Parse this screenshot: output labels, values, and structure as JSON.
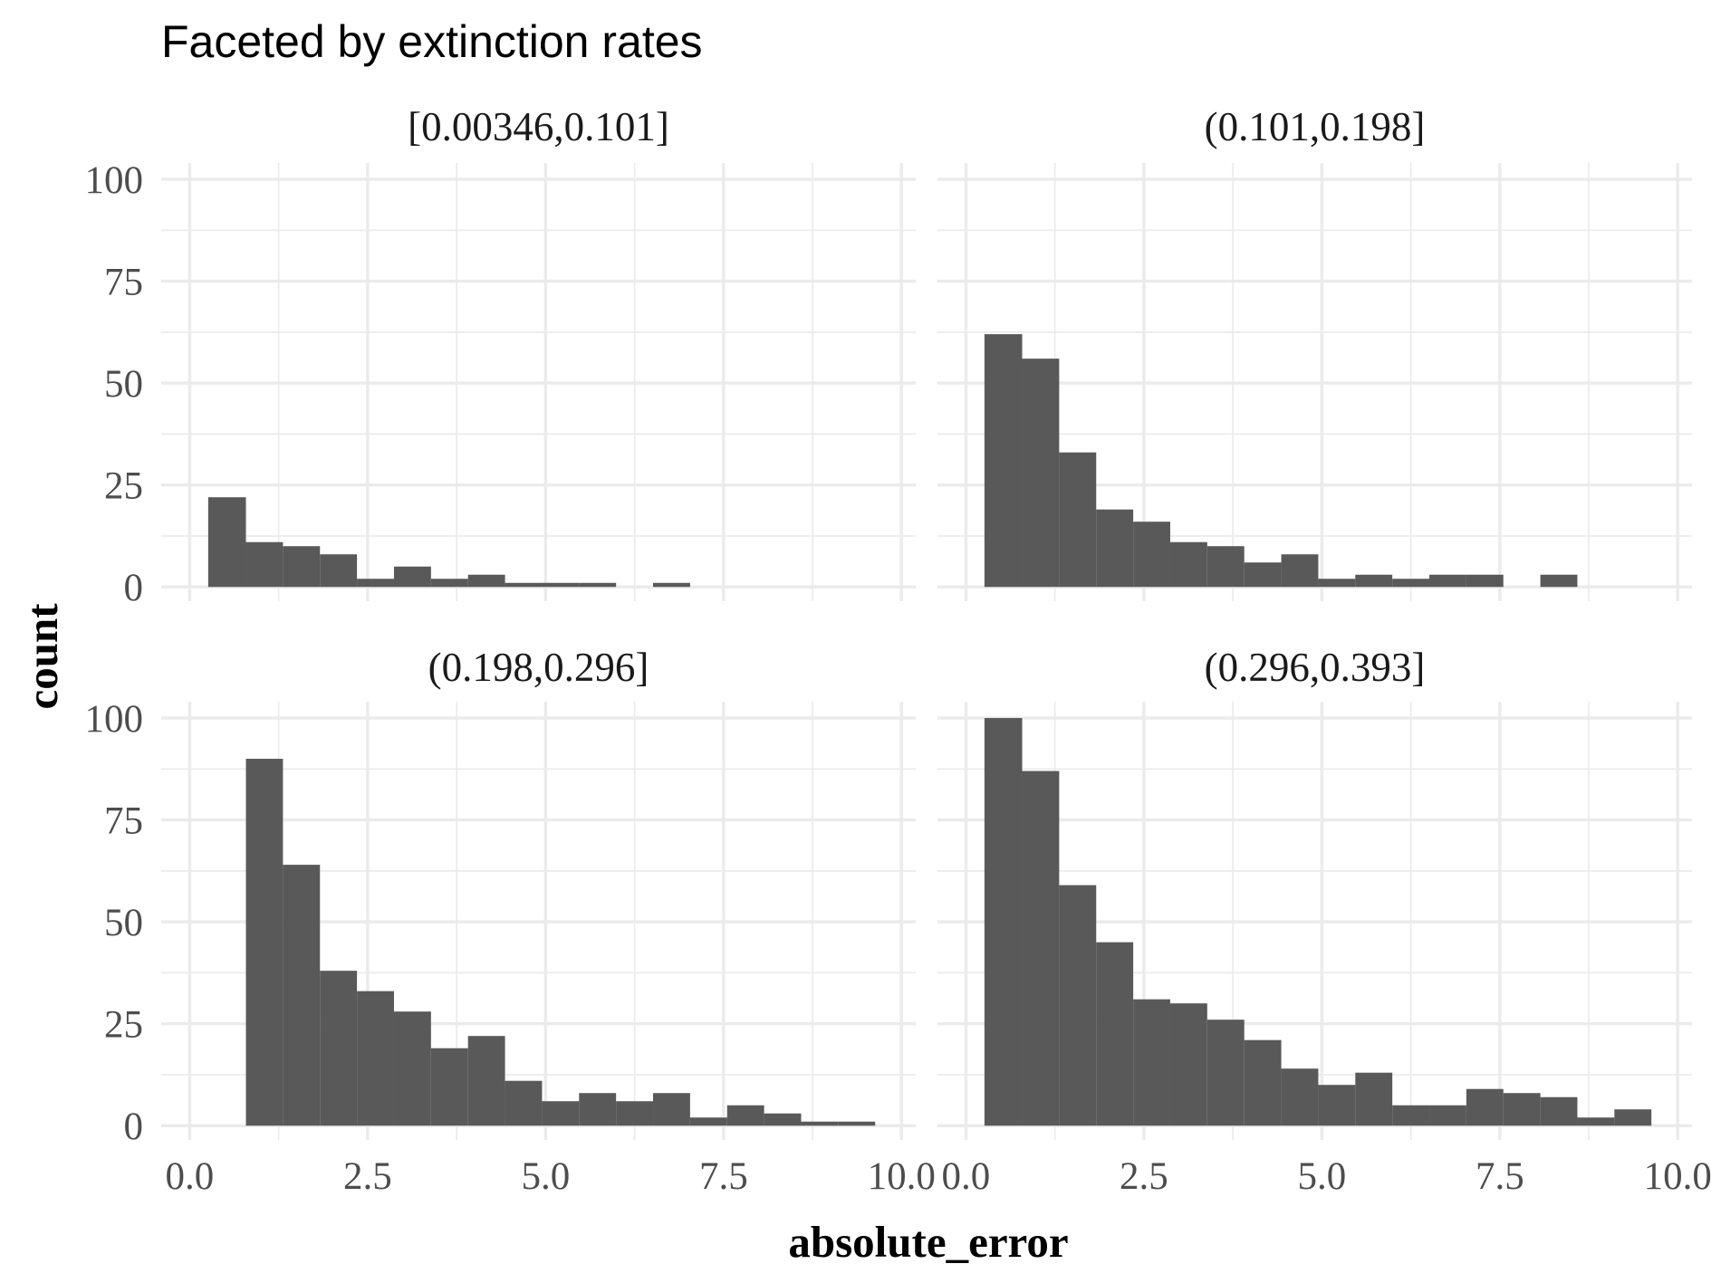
{
  "chart_data": {
    "type": "bar",
    "title": "Faceted by extinction rates",
    "xlabel": "absolute_error",
    "ylabel": "count",
    "xlim": [
      -0.4,
      10.2
    ],
    "ylim": [
      -3.5,
      104
    ],
    "xticks": [
      "0.0",
      "2.5",
      "5.0",
      "7.5",
      "10.0"
    ],
    "yticks": [
      "0",
      "25",
      "50",
      "75",
      "100"
    ],
    "grid": true,
    "colors": {
      "bar": "#595959",
      "grid": "#ebebeb"
    },
    "bin_edges": [
      0.26,
      0.79,
      1.31,
      1.83,
      2.35,
      2.87,
      3.39,
      3.91,
      4.43,
      4.95,
      5.47,
      5.99,
      6.51,
      7.03,
      7.55,
      8.07,
      8.59,
      9.11,
      9.63
    ],
    "facets": [
      {
        "label": "[0.00346,0.101]",
        "counts": [
          22,
          11,
          10,
          8,
          2,
          5,
          2,
          3,
          1,
          1,
          1,
          0,
          1,
          0,
          0,
          0,
          0,
          0
        ]
      },
      {
        "label": "(0.101,0.198]",
        "counts": [
          62,
          56,
          33,
          19,
          16,
          11,
          10,
          6,
          8,
          2,
          3,
          2,
          3,
          3,
          0,
          3,
          0,
          0
        ]
      },
      {
        "label": "(0.198,0.296]",
        "counts": [
          0,
          90,
          64,
          38,
          33,
          28,
          19,
          22,
          11,
          6,
          8,
          6,
          8,
          2,
          5,
          3,
          1,
          1
        ]
      },
      {
        "label": "(0.296,0.393]",
        "counts": [
          100,
          87,
          59,
          45,
          31,
          30,
          26,
          21,
          14,
          10,
          13,
          5,
          5,
          9,
          8,
          7,
          2,
          4
        ]
      }
    ]
  }
}
